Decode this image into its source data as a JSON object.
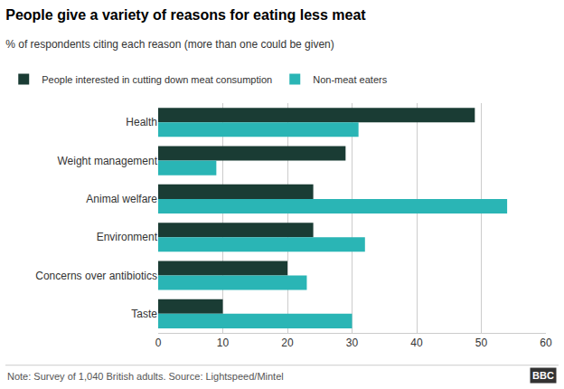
{
  "chart_data": {
    "type": "bar",
    "orientation": "horizontal",
    "title": "People give a variety of reasons for eating less meat",
    "subtitle": "% of respondents citing each reason (more than one could be given)",
    "annotations": [
      "Note: Survey of 1,040 British adults. Source: Lightspeed/Mintel",
      "BBC"
    ],
    "categories": [
      "Health",
      "Weight management",
      "Animal welfare",
      "Environment",
      "Concerns over antibiotics",
      "Taste"
    ],
    "series": [
      {
        "name": "People interested in cutting down meat consumption",
        "color": "#1a3c34",
        "values": [
          49,
          29,
          24,
          24,
          20,
          10
        ]
      },
      {
        "name": "Non-meat eaters",
        "color": "#2ab5b5",
        "values": [
          31,
          9,
          54,
          32,
          23,
          30
        ]
      }
    ],
    "xlim": [
      0,
      60
    ],
    "xticks": [
      0,
      10,
      20,
      30,
      40,
      50,
      60
    ],
    "grid": true,
    "legend": "top left"
  }
}
